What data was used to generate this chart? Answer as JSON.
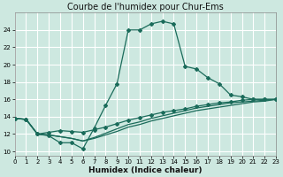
{
  "title": "Courbe de l'humidex pour Chur-Ems",
  "xlabel": "Humidex (Indice chaleur)",
  "bg_color": "#cde8e0",
  "grid_color": "#ffffff",
  "line_color": "#1a6b5a",
  "line1_x": [
    0,
    1,
    2,
    3,
    4,
    5,
    6,
    7,
    8,
    9,
    10,
    11,
    12,
    13,
    14,
    15,
    16,
    17,
    18,
    19,
    20,
    21,
    22,
    23
  ],
  "line1_y": [
    13.8,
    13.7,
    12.0,
    11.8,
    11.0,
    11.0,
    10.3,
    12.7,
    15.3,
    17.8,
    24.0,
    24.0,
    24.7,
    25.0,
    24.7,
    19.8,
    19.5,
    18.5,
    17.8,
    16.5,
    16.3,
    16.0,
    16.0,
    16.0
  ],
  "line2_x": [
    0,
    1,
    2,
    3,
    4,
    5,
    6,
    7,
    8,
    9,
    10,
    11,
    12,
    13,
    14,
    15,
    16,
    17,
    18,
    19,
    20,
    21,
    22,
    23
  ],
  "line2_y": [
    13.8,
    13.7,
    12.0,
    12.2,
    12.4,
    12.3,
    12.2,
    12.5,
    12.8,
    13.2,
    13.6,
    13.9,
    14.2,
    14.5,
    14.7,
    14.9,
    15.2,
    15.4,
    15.6,
    15.7,
    15.9,
    16.0,
    16.0,
    16.0
  ],
  "line3_x": [
    0,
    1,
    2,
    3,
    4,
    5,
    6,
    7,
    8,
    9,
    10,
    11,
    12,
    13,
    14,
    15,
    16,
    17,
    18,
    19,
    20,
    21,
    22,
    23
  ],
  "line3_y": [
    13.8,
    13.7,
    12.0,
    11.9,
    11.7,
    11.5,
    11.2,
    11.5,
    11.9,
    12.3,
    12.8,
    13.1,
    13.5,
    13.8,
    14.1,
    14.4,
    14.7,
    14.9,
    15.1,
    15.3,
    15.5,
    15.7,
    15.8,
    16.0
  ],
  "line4_x": [
    0,
    1,
    2,
    3,
    4,
    5,
    6,
    7,
    8,
    9,
    10,
    11,
    12,
    13,
    14,
    15,
    16,
    17,
    18,
    19,
    20,
    21,
    22,
    23
  ],
  "line4_y": [
    13.8,
    13.7,
    12.0,
    11.9,
    11.7,
    11.5,
    11.2,
    11.6,
    12.1,
    12.6,
    13.1,
    13.4,
    13.8,
    14.1,
    14.4,
    14.7,
    15.0,
    15.2,
    15.4,
    15.6,
    15.7,
    15.8,
    15.9,
    16.0
  ],
  "xlim": [
    0,
    23
  ],
  "ylim": [
    9.5,
    26.0
  ],
  "yticks": [
    10,
    12,
    14,
    16,
    18,
    20,
    22,
    24
  ],
  "xticks": [
    0,
    1,
    2,
    3,
    4,
    5,
    6,
    7,
    8,
    9,
    10,
    11,
    12,
    13,
    14,
    15,
    16,
    17,
    18,
    19,
    20,
    21,
    22,
    23
  ],
  "title_fontsize": 7,
  "xlabel_fontsize": 6.5,
  "tick_fontsize": 5
}
